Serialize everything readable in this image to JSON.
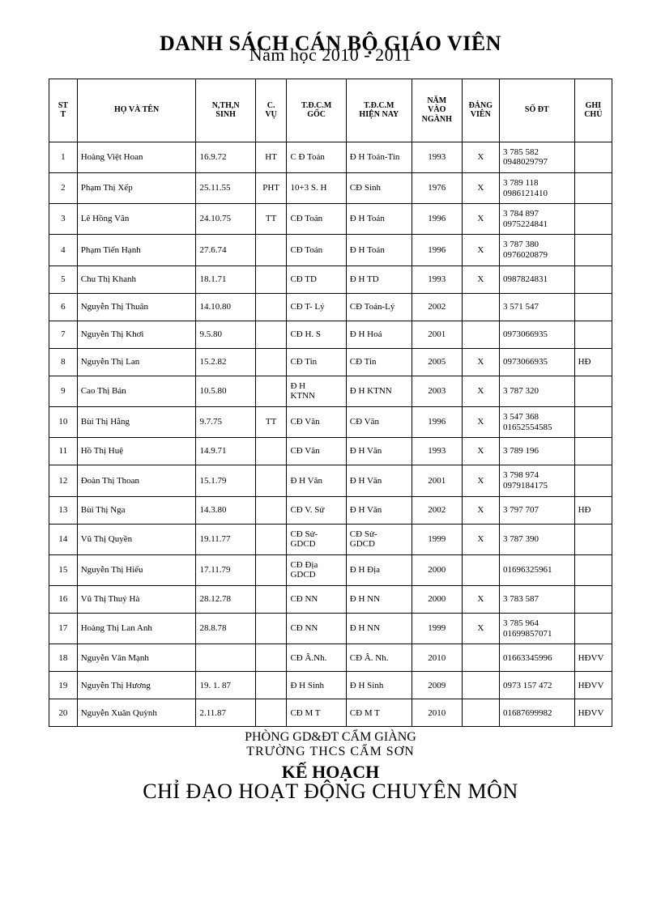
{
  "colors": {
    "page_bg": "#ffffff",
    "text": "#000000",
    "border": "#000000"
  },
  "typography": {
    "font_family": "Times New Roman",
    "title_fontsize_pt": 20,
    "subtitle_fontsize_pt": 16,
    "header_cell_fontsize_pt": 8,
    "cell_fontsize_pt": 9,
    "footer_heading_fontsize_pt": 16
  },
  "title": {
    "main": "DANH SÁCH CÁN BỘ GIÁO VIÊN",
    "sub": "Năm học 2010 - 2011"
  },
  "table": {
    "columns": [
      {
        "key": "stt",
        "label": "ST\nT",
        "class": "col-stt"
      },
      {
        "key": "name",
        "label": "HỌ VÀ TÊN",
        "class": "col-name"
      },
      {
        "key": "dob",
        "label": "N,TH,N\nSINH",
        "class": "col-dob"
      },
      {
        "key": "pos",
        "label": "C.\nVỤ",
        "class": "col-pos"
      },
      {
        "key": "deg1",
        "label": "T.Đ.C.M\nGỐC",
        "class": "col-deg1"
      },
      {
        "key": "deg2",
        "label": "T.Đ.C.M\nHIỆN NAY",
        "class": "col-deg2"
      },
      {
        "key": "year",
        "label": "NĂM\nVÀO\nNGÀNH",
        "class": "col-year"
      },
      {
        "key": "party",
        "label": "ĐẢNG\nVIÊN",
        "class": "col-party"
      },
      {
        "key": "phone",
        "label": "SỐ ĐT",
        "class": "col-phone"
      },
      {
        "key": "note",
        "label": "GHI\nCHÚ",
        "class": "col-note"
      }
    ],
    "rows": [
      {
        "stt": "1",
        "name": "Hoàng Việt Hoan",
        "dob": "16.9.72",
        "pos": "HT",
        "deg1": "C Đ Toán",
        "deg2": "Đ H   Toán-Tin",
        "year": "1993",
        "party": "X",
        "phone": "3 785 582\n0948029797",
        "note": ""
      },
      {
        "stt": "2",
        "name": "Phạm Thị Xếp",
        "dob": "25.11.55",
        "pos": "PHT",
        "deg1": "10+3 S. H",
        "deg2": "CĐ  Sinh",
        "year": "1976",
        "party": "X",
        "phone": "3 789 118\n0986121410",
        "note": ""
      },
      {
        "stt": "3",
        "name": "Lê Hồng Vân",
        "dob": "24.10.75",
        "pos": "TT",
        "deg1": "CĐ Toán",
        "deg2": "Đ H Toán",
        "year": "1996",
        "party": "X",
        "phone": "3 784 897\n0975224841",
        "note": ""
      },
      {
        "stt": "4",
        "name": "Phạm Tiến Hạnh",
        "dob": "27.6.74",
        "pos": "",
        "deg1": "CĐ Toán",
        "deg2": "Đ H Toán",
        "year": "1996",
        "party": "X",
        "phone": "3 787 380\n0976020879",
        "note": ""
      },
      {
        "stt": "5",
        "name": "Chu Thị Khanh",
        "dob": "18.1.71",
        "pos": "",
        "deg1": "CĐ TD",
        "deg2": "Đ H TD",
        "year": "1993",
        "party": "X",
        "phone": "0987824831",
        "note": ""
      },
      {
        "stt": "6",
        "name": "Nguyễn Thị Thuân",
        "dob": "14.10.80",
        "pos": "",
        "deg1": "CĐ T- Lý",
        "deg2": "CĐ Toán-Lý",
        "year": "2002",
        "party": "",
        "phone": "3 571 547",
        "note": ""
      },
      {
        "stt": "7",
        "name": "Nguyễn Thị Khơi",
        "dob": "9.5.80",
        "pos": "",
        "deg1": "CĐ  H. S",
        "deg2": "Đ H  Hoá",
        "year": "2001",
        "party": "",
        "phone": "0973066935",
        "note": ""
      },
      {
        "stt": "8",
        "name": "Nguyễn Thị Lan",
        "dob": "15.2.82",
        "pos": "",
        "deg1": "CĐ Tin",
        "deg2": "CĐ Tin",
        "year": "2005",
        "party": "X",
        "phone": "0973066935",
        "note": "HĐ"
      },
      {
        "stt": "9",
        "name": "Cao Thị Bản",
        "dob": "10.5.80",
        "pos": "",
        "deg1": "Đ H\nKTNN",
        "deg2": "Đ H KTNN",
        "year": "2003",
        "party": "X",
        "phone": "3 787 320",
        "note": ""
      },
      {
        "stt": "10",
        "name": "Bùi Thị Hằng",
        "dob": "9.7.75",
        "pos": "TT",
        "deg1": "CĐ  Văn",
        "deg2": "CĐ  Văn",
        "year": "1996",
        "party": "X",
        "phone": "3 547 368\n01652554585",
        "note": ""
      },
      {
        "stt": "11",
        "name": "Hồ Thị Huệ",
        "dob": "14.9.71",
        "pos": "",
        "deg1": "CĐ  Văn",
        "deg2": "Đ H Văn",
        "year": "1993",
        "party": "X",
        "phone": "3 789 196",
        "note": ""
      },
      {
        "stt": "12",
        "name": "Đoàn Thị Thoan",
        "dob": "15.1.79",
        "pos": "",
        "deg1": "Đ H  Văn",
        "deg2": "Đ H Văn",
        "year": "2001",
        "party": "X",
        "phone": "3 798 974\n0979184175",
        "note": ""
      },
      {
        "stt": "13",
        "name": "Bùi Thị Nga",
        "dob": "14.3.80",
        "pos": "",
        "deg1": "CĐ V. Sử",
        "deg2": "Đ H Văn",
        "year": "2002",
        "party": "X",
        "phone": "3 797 707",
        "note": "HĐ"
      },
      {
        "stt": "14",
        "name": "Vũ Thị Quyền",
        "dob": "19.11.77",
        "pos": "",
        "deg1": "CĐ Sử-\nGDCD",
        "deg2": "CĐ Sử-\nGDCD",
        "year": "1999",
        "party": "X",
        "phone": "3 787 390",
        "note": ""
      },
      {
        "stt": "15",
        "name": "Nguyễn Thị Hiếu",
        "dob": "17.11.79",
        "pos": "",
        "deg1": "CĐ Địa\nGDCD",
        "deg2": "Đ H Địa",
        "year": "2000",
        "party": "",
        "phone": "01696325961",
        "note": ""
      },
      {
        "stt": "16",
        "name": "Vũ Thị Thuý Hà",
        "dob": "28.12.78",
        "pos": "",
        "deg1": "CĐ NN",
        "deg2": "Đ H NN",
        "year": "2000",
        "party": "X",
        "phone": "3 783 587",
        "note": ""
      },
      {
        "stt": "17",
        "name": "Hoàng Thị Lan Anh",
        "dob": "28.8.78",
        "pos": "",
        "deg1": "CĐ NN",
        "deg2": "Đ H NN",
        "year": "1999",
        "party": "X",
        "phone": "3 785 964\n01699857071",
        "note": ""
      },
      {
        "stt": "18",
        "name": " Nguyễn  Văn Mạnh",
        "dob": "",
        "pos": "",
        "deg1": "CĐ Â.Nh.",
        "deg2": "CĐ Â. Nh.",
        "year": "2010",
        "party": "",
        "phone": "01663345996",
        "note": "HĐVV"
      },
      {
        "stt": "19",
        "name": "Nguyễn Thị Hương",
        "dob": "19. 1. 87",
        "pos": "",
        "deg1": "Đ H Sinh",
        "deg2": "Đ H Sinh",
        "year": "2009",
        "party": "",
        "phone": "0973 157 472",
        "note": "HĐVV"
      },
      {
        "stt": "20",
        "name": " Nguyễn Xuân Quỳnh",
        "dob": "2.11.87",
        "pos": "",
        "deg1": "CĐ M T",
        "deg2": "CĐ M T",
        "year": "2010",
        "party": "",
        "phone": "01687699982",
        "note": "HĐVV"
      }
    ]
  },
  "footer": {
    "line1": "PHÒNG GD&ĐT CẨM GIÀNG",
    "line2": "TRƯỜNG   THCS CẨM SƠN",
    "heading1": "KẾ HOẠCH",
    "heading2": "CHỈ ĐẠO HOẠT ĐỘNG CHUYÊN MÔN"
  }
}
